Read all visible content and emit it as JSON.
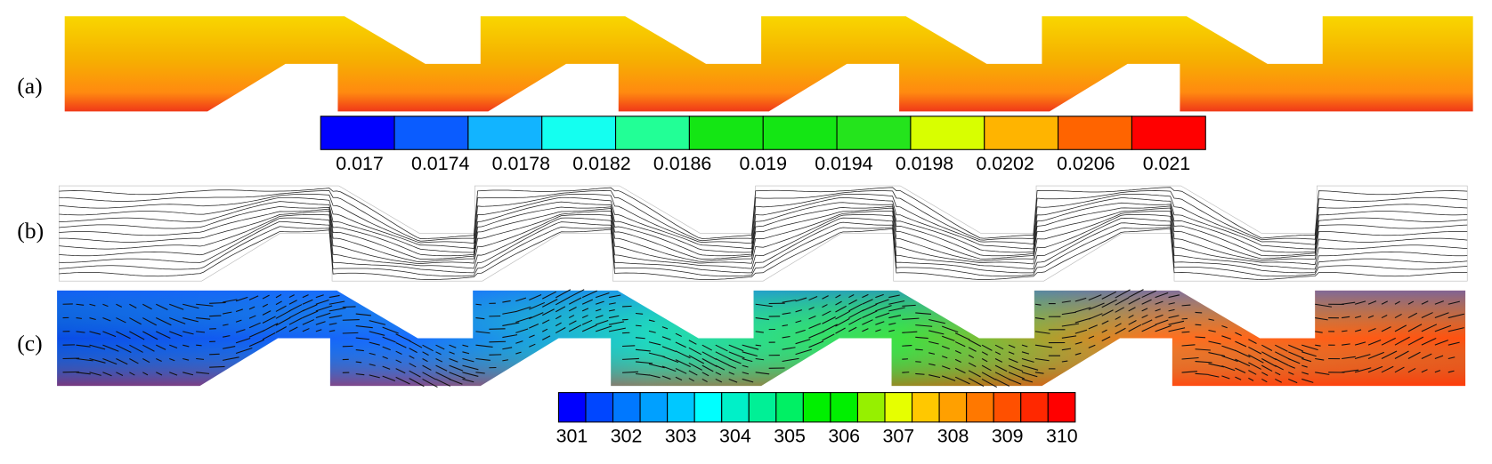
{
  "panels": [
    {
      "label": "(a)"
    },
    {
      "label": "(b)"
    },
    {
      "label": "(c)"
    }
  ],
  "colorbars": [
    {
      "colors": [
        "#0000ff",
        "#0a5cff",
        "#12b4ff",
        "#14fff0",
        "#22ff96",
        "#14e614",
        "#14e614",
        "#24e41c",
        "#d8ff00",
        "#ffb400",
        "#ff6400",
        "#ff0000"
      ],
      "labels": [
        "0.017",
        "0.0174",
        "0.0178",
        "0.0182",
        "0.0186",
        "0.019",
        "0.0194",
        "0.0198",
        "0.0202",
        "0.0206",
        "0.021"
      ]
    },
    {
      "colors": [
        "#0000ff",
        "#0046ff",
        "#0078ff",
        "#00a0ff",
        "#00c8ff",
        "#00ffff",
        "#00f0c8",
        "#00f096",
        "#00f064",
        "#00f000",
        "#00f000",
        "#96f000",
        "#e6ff00",
        "#ffc800",
        "#ffa000",
        "#ff7800",
        "#ff5000",
        "#ff2800",
        "#ff0000"
      ],
      "labels": [
        "301",
        "302",
        "303",
        "304",
        "305",
        "306",
        "307",
        "308",
        "309",
        "310"
      ]
    }
  ]
}
